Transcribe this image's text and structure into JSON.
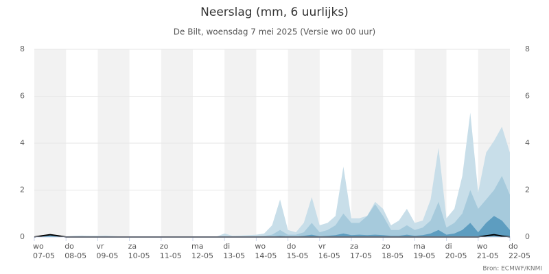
{
  "chart_data": {
    "type": "area",
    "title": "Neerslag (mm, 6 uurlijks)",
    "subtitle": "De Bilt, woensdag 7 mei 2025 (Versie wo 00 uur)",
    "credit": "Bron: ECMWF/KNMI",
    "x": [
      0,
      0.25,
      0.5,
      0.75,
      1,
      1.25,
      1.5,
      1.75,
      2,
      2.25,
      2.5,
      2.75,
      3,
      3.25,
      3.5,
      3.75,
      4,
      4.25,
      4.5,
      4.75,
      5,
      5.25,
      5.5,
      5.75,
      6,
      6.25,
      6.5,
      6.75,
      7,
      7.25,
      7.5,
      7.75,
      8,
      8.25,
      8.5,
      8.75,
      9,
      9.25,
      9.5,
      9.75,
      10,
      10.25,
      10.5,
      10.75,
      11,
      11.25,
      11.5,
      11.75,
      12,
      12.25,
      12.5,
      12.75,
      13,
      13.25,
      13.5,
      13.75,
      14,
      14.25,
      14.5,
      14.75,
      15
    ],
    "xlim": [
      0,
      15
    ],
    "xticks": [
      {
        "value": 0,
        "label": "wo 07-05"
      },
      {
        "value": 1,
        "label": "do 08-05"
      },
      {
        "value": 2,
        "label": "vr 09-05"
      },
      {
        "value": 3,
        "label": "za 10-05"
      },
      {
        "value": 4,
        "label": "zo 11-05"
      },
      {
        "value": 5,
        "label": "ma 12-05"
      },
      {
        "value": 6,
        "label": "di 13-05"
      },
      {
        "value": 7,
        "label": "wo 14-05"
      },
      {
        "value": 8,
        "label": "do 15-05"
      },
      {
        "value": 9,
        "label": "vr 16-05"
      },
      {
        "value": 10,
        "label": "za 17-05"
      },
      {
        "value": 11,
        "label": "zo 18-05"
      },
      {
        "value": 12,
        "label": "ma 19-05"
      },
      {
        "value": 13,
        "label": "di 20-05"
      },
      {
        "value": 14,
        "label": "wo 21-05"
      },
      {
        "value": 15,
        "label": "do 22-05"
      }
    ],
    "ylim": [
      0,
      8
    ],
    "yticks": [
      0,
      2,
      4,
      6,
      8
    ],
    "y2lim": [
      0,
      8
    ],
    "y2ticks": [
      0,
      2,
      4,
      6,
      8
    ],
    "grid": true,
    "series": [
      {
        "color": "#c8dee9",
        "values": [
          0,
          0.05,
          0.1,
          0.08,
          0.03,
          0.05,
          0.06,
          0.05,
          0.05,
          0.06,
          0.04,
          0.02,
          0.02,
          0.01,
          0.01,
          0.01,
          0.01,
          0.01,
          0.01,
          0.01,
          0.01,
          0.02,
          0.03,
          0.02,
          0.15,
          0.05,
          0.06,
          0.08,
          0.1,
          0.15,
          0.5,
          1.6,
          0.3,
          0.2,
          0.6,
          1.7,
          0.5,
          0.6,
          0.9,
          3.0,
          0.8,
          0.8,
          0.9,
          1.5,
          1.2,
          0.5,
          0.7,
          1.2,
          0.6,
          0.7,
          1.6,
          3.8,
          0.8,
          1.2,
          2.6,
          5.3,
          1.9,
          3.6,
          4.1,
          4.7,
          3.6
        ]
      },
      {
        "color": "#a6cadc",
        "values": [
          0,
          0.03,
          0.08,
          0.05,
          0.02,
          0.02,
          0.02,
          0.02,
          0.02,
          0.02,
          0.01,
          0,
          0,
          0,
          0,
          0,
          0,
          0,
          0,
          0,
          0,
          0,
          0,
          0,
          0,
          0,
          0.03,
          0.02,
          0.03,
          0.05,
          0.1,
          0.3,
          0.1,
          0.1,
          0.2,
          0.6,
          0.2,
          0.3,
          0.5,
          1.0,
          0.6,
          0.6,
          0.9,
          1.4,
          0.9,
          0.3,
          0.3,
          0.5,
          0.3,
          0.4,
          0.7,
          1.5,
          0.4,
          0.6,
          1.0,
          2.0,
          1.2,
          1.6,
          2.0,
          2.6,
          1.8
        ]
      },
      {
        "color": "#5d9dc0",
        "values": [
          0,
          0.02,
          0.06,
          0.04,
          0,
          0,
          0,
          0,
          0,
          0,
          0,
          0,
          0,
          0,
          0,
          0,
          0,
          0,
          0,
          0,
          0,
          0,
          0,
          0,
          0,
          0,
          0,
          0,
          0,
          0,
          0.02,
          0.05,
          0.02,
          0.02,
          0.05,
          0.1,
          0.03,
          0.05,
          0.08,
          0.15,
          0.08,
          0.1,
          0.08,
          0.1,
          0.08,
          0.05,
          0.05,
          0.1,
          0.05,
          0.08,
          0.15,
          0.3,
          0.1,
          0.15,
          0.3,
          0.6,
          0.2,
          0.6,
          0.9,
          0.7,
          0.3
        ]
      },
      {
        "color": "#000000",
        "line": true,
        "values": [
          0,
          0.05,
          0.1,
          0.05,
          0,
          0,
          0,
          0,
          0,
          0,
          0,
          0,
          0,
          0,
          0,
          0,
          0,
          0,
          0,
          0,
          0,
          0,
          0,
          0,
          0,
          0,
          0,
          0,
          0,
          0,
          0,
          0,
          0,
          0,
          0,
          0,
          0,
          0,
          0,
          0,
          0,
          0,
          0,
          0,
          0,
          0,
          0,
          0,
          0,
          0,
          0,
          0,
          0,
          0,
          0,
          0,
          0,
          0.05,
          0.1,
          0.04,
          0
        ]
      }
    ]
  }
}
